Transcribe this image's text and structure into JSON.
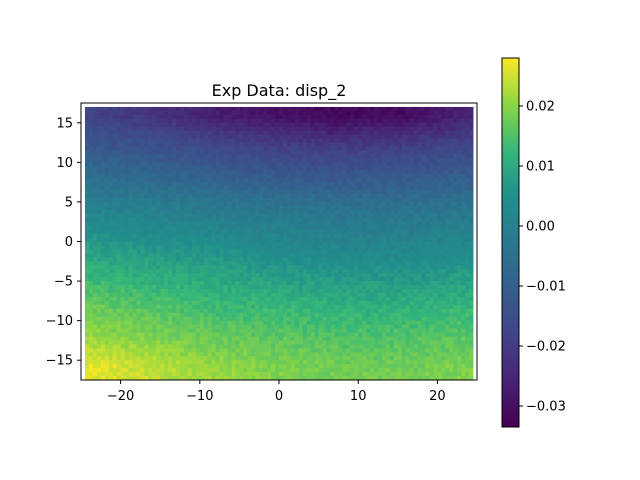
{
  "chart_data": {
    "type": "heatmap",
    "title": "Exp Data: disp_2",
    "xlabel": "",
    "ylabel": "",
    "xlim": [
      -25,
      25
    ],
    "ylim": [
      -17.5,
      17.5
    ],
    "x_ticks": [
      -20,
      -10,
      0,
      10,
      20
    ],
    "x_tick_labels": [
      "−20",
      "−10",
      "0",
      "10",
      "20"
    ],
    "y_ticks": [
      -15,
      -10,
      -5,
      0,
      5,
      10,
      15
    ],
    "y_tick_labels": [
      "−15",
      "−10",
      "−5",
      "0",
      "5",
      "10",
      "15"
    ],
    "data_extent": {
      "x": [
        -24.5,
        24.5
      ],
      "y": [
        -17,
        17
      ]
    },
    "colormap": "viridis",
    "colorbar": {
      "range": [
        -0.0335,
        0.028
      ],
      "ticks": [
        -0.03,
        -0.02,
        -0.01,
        0.0,
        0.01,
        0.02
      ],
      "tick_labels": [
        "−0.03",
        "−0.02",
        "−0.01",
        "0.00",
        "0.01",
        "0.02"
      ]
    },
    "field": {
      "description_model": "value ≈ a + b·x + c·y + d·y² + e·x·y",
      "grid_x": [
        -24,
        -16,
        -8,
        0,
        8,
        16,
        24
      ],
      "grid_y": [
        16,
        12,
        8,
        4,
        0,
        -4,
        -8,
        -12,
        -16
      ],
      "values": [
        [
          -0.018,
          -0.022,
          -0.027,
          -0.03,
          -0.032,
          -0.031,
          -0.026
        ],
        [
          -0.012,
          -0.014,
          -0.017,
          -0.019,
          -0.02,
          -0.019,
          -0.017
        ],
        [
          -0.005,
          -0.007,
          -0.009,
          -0.011,
          -0.012,
          -0.011,
          -0.01
        ],
        [
          0.001,
          0.0,
          -0.002,
          -0.003,
          -0.004,
          -0.004,
          -0.003
        ],
        [
          0.007,
          0.005,
          0.004,
          0.002,
          0.001,
          0.001,
          0.002
        ],
        [
          0.012,
          0.01,
          0.009,
          0.007,
          0.006,
          0.006,
          0.007
        ],
        [
          0.017,
          0.015,
          0.013,
          0.012,
          0.011,
          0.011,
          0.012
        ],
        [
          0.021,
          0.019,
          0.017,
          0.016,
          0.015,
          0.015,
          0.016
        ],
        [
          0.027,
          0.024,
          0.021,
          0.019,
          0.018,
          0.018,
          0.019
        ]
      ]
    }
  }
}
